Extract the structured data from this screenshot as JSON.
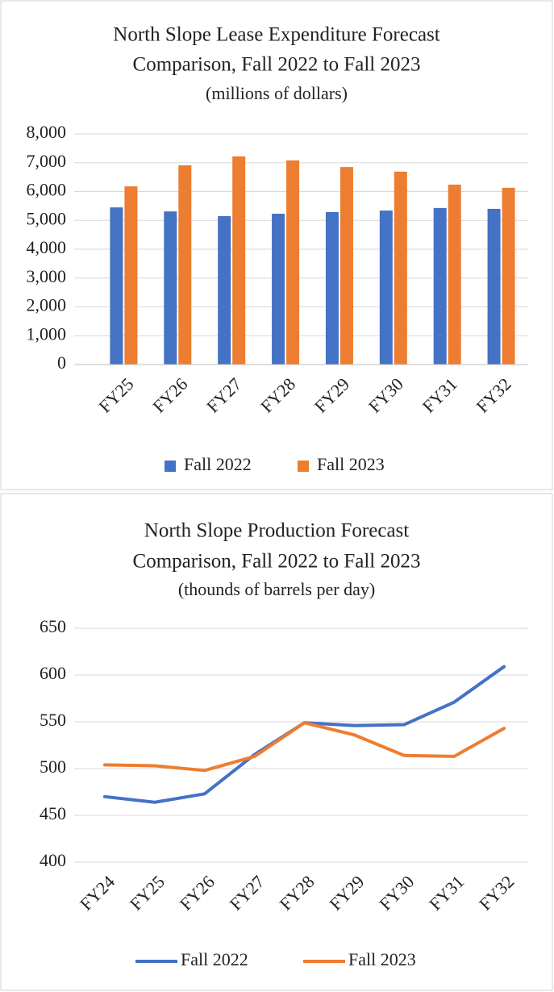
{
  "chart_data": [
    {
      "type": "bar",
      "title": [
        "North Slope Lease Expenditure Forecast",
        "Comparison, Fall 2022 to Fall 2023"
      ],
      "subtitle": "(millions of dollars)",
      "categories": [
        "FY25",
        "FY26",
        "FY27",
        "FY28",
        "FY29",
        "FY30",
        "FY31",
        "FY32"
      ],
      "series": [
        {
          "name": "Fall 2022",
          "color": "#4472c4",
          "values": [
            5450,
            5310,
            5150,
            5230,
            5290,
            5340,
            5430,
            5400
          ]
        },
        {
          "name": "Fall 2023",
          "color": "#ed7d31",
          "values": [
            6180,
            6910,
            7220,
            7080,
            6850,
            6690,
            6240,
            6130
          ]
        }
      ],
      "ylim": [
        0,
        8000
      ],
      "yticks": [
        0,
        {
          "value": 1000,
          "label": "1,000"
        },
        {
          "value": 2000,
          "label": "2,000"
        },
        {
          "value": 3000,
          "label": "3,000"
        },
        {
          "value": 4000,
          "label": "4,000"
        },
        {
          "value": 5000,
          "label": "5,000"
        },
        {
          "value": 6000,
          "label": "6,000"
        },
        {
          "value": 7000,
          "label": "7,000"
        },
        {
          "value": 8000,
          "label": "8,000"
        }
      ],
      "grid": true,
      "legend": "bottom"
    },
    {
      "type": "line",
      "title": [
        "North Slope Production Forecast",
        "Comparison, Fall 2022 to Fall 2023"
      ],
      "subtitle": "(thounds of barrels per day)",
      "categories": [
        "FY24",
        "FY25",
        "FY26",
        "FY27",
        "FY28",
        "FY29",
        "FY30",
        "FY31",
        "FY32"
      ],
      "series": [
        {
          "name": "Fall 2022",
          "color": "#4472c4",
          "values": [
            470,
            464,
            473,
            515,
            549,
            546,
            547,
            571,
            609
          ]
        },
        {
          "name": "Fall 2023",
          "color": "#ed7d31",
          "values": [
            504,
            503,
            498,
            513,
            549,
            536,
            514,
            513,
            543
          ]
        }
      ],
      "ylim": [
        400,
        650
      ],
      "yticks": [
        400,
        450,
        500,
        550,
        600,
        650
      ],
      "grid": true,
      "legend": "bottom"
    }
  ]
}
